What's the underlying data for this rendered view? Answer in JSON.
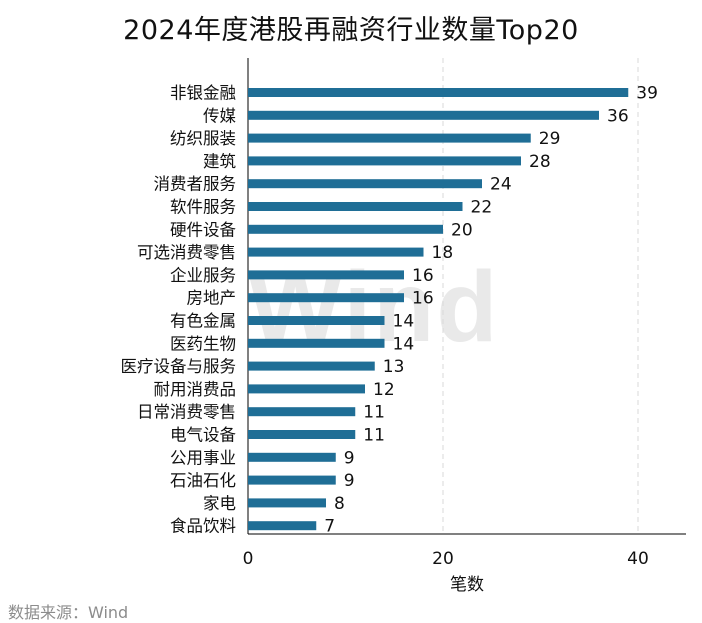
{
  "chart_data": {
    "type": "bar",
    "orientation": "horizontal",
    "title": "2024年度港股再融资行业数量Top20",
    "xlabel": "笔数",
    "ylabel": "",
    "xlim": [
      0,
      45
    ],
    "xticks": [
      0,
      20,
      40
    ],
    "grid": "vertical-dashed",
    "categories": [
      "非银金融",
      "传媒",
      "纺织服装",
      "建筑",
      "消费者服务",
      "软件服务",
      "硬件设备",
      "可选消费零售",
      "企业服务",
      "房地产",
      "有色金属",
      "医药生物",
      "医疗设备与服务",
      "耐用消费品",
      "日常消费零售",
      "电气设备",
      "公用事业",
      "石油石化",
      "家电",
      "食品饮料"
    ],
    "values": [
      39,
      36,
      29,
      28,
      24,
      22,
      20,
      18,
      16,
      16,
      14,
      14,
      13,
      12,
      11,
      11,
      9,
      9,
      8,
      7
    ],
    "bar_color": "#1f6e96"
  },
  "source": "数据来源：Wind",
  "watermark": "Wind"
}
